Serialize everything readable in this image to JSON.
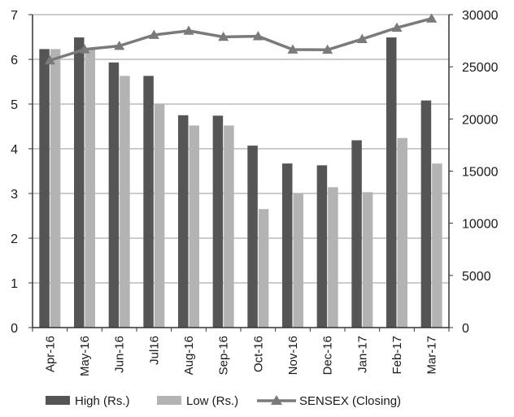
{
  "chart_data": {
    "type": "bar",
    "categories": [
      "Apr-16",
      "May-16",
      "Jun-16",
      "Jul16",
      "Aug-16",
      "Sep-16",
      "Oct-16",
      "Nov-16",
      "Dec-16",
      "Jan-17",
      "Feb-17",
      "Mar-17"
    ],
    "series": [
      {
        "name": "High (Rs.)",
        "type": "bar",
        "axis": "left",
        "color": "#555555",
        "values": [
          6.23,
          6.49,
          5.93,
          5.63,
          4.75,
          4.74,
          4.07,
          3.67,
          3.63,
          4.19,
          6.49,
          5.08
        ]
      },
      {
        "name": "Low (Rs.)",
        "type": "bar",
        "axis": "left",
        "color": "#b3b3b3",
        "values": [
          6.23,
          6.23,
          5.63,
          5.0,
          4.52,
          4.52,
          2.65,
          3.0,
          3.14,
          3.03,
          4.24,
          3.67
        ]
      },
      {
        "name": "SENSEX (Closing)",
        "type": "line",
        "axis": "right",
        "color": "#7a7a7a",
        "marker": "triangle",
        "values": [
          25607,
          26668,
          26999,
          28052,
          28452,
          27866,
          27930,
          26653,
          26626,
          27656,
          28743,
          29621
        ]
      }
    ],
    "left_axis": {
      "ylim": [
        0,
        7
      ],
      "ticks": [
        "0",
        "1",
        "2",
        "3",
        "4",
        "5",
        "6",
        "7"
      ]
    },
    "right_axis": {
      "ylim": [
        0,
        30000
      ],
      "ticks": [
        "0",
        "5000",
        "10000",
        "15000",
        "20000",
        "25000",
        "30000"
      ]
    },
    "grid": true,
    "legend_position": "bottom"
  }
}
